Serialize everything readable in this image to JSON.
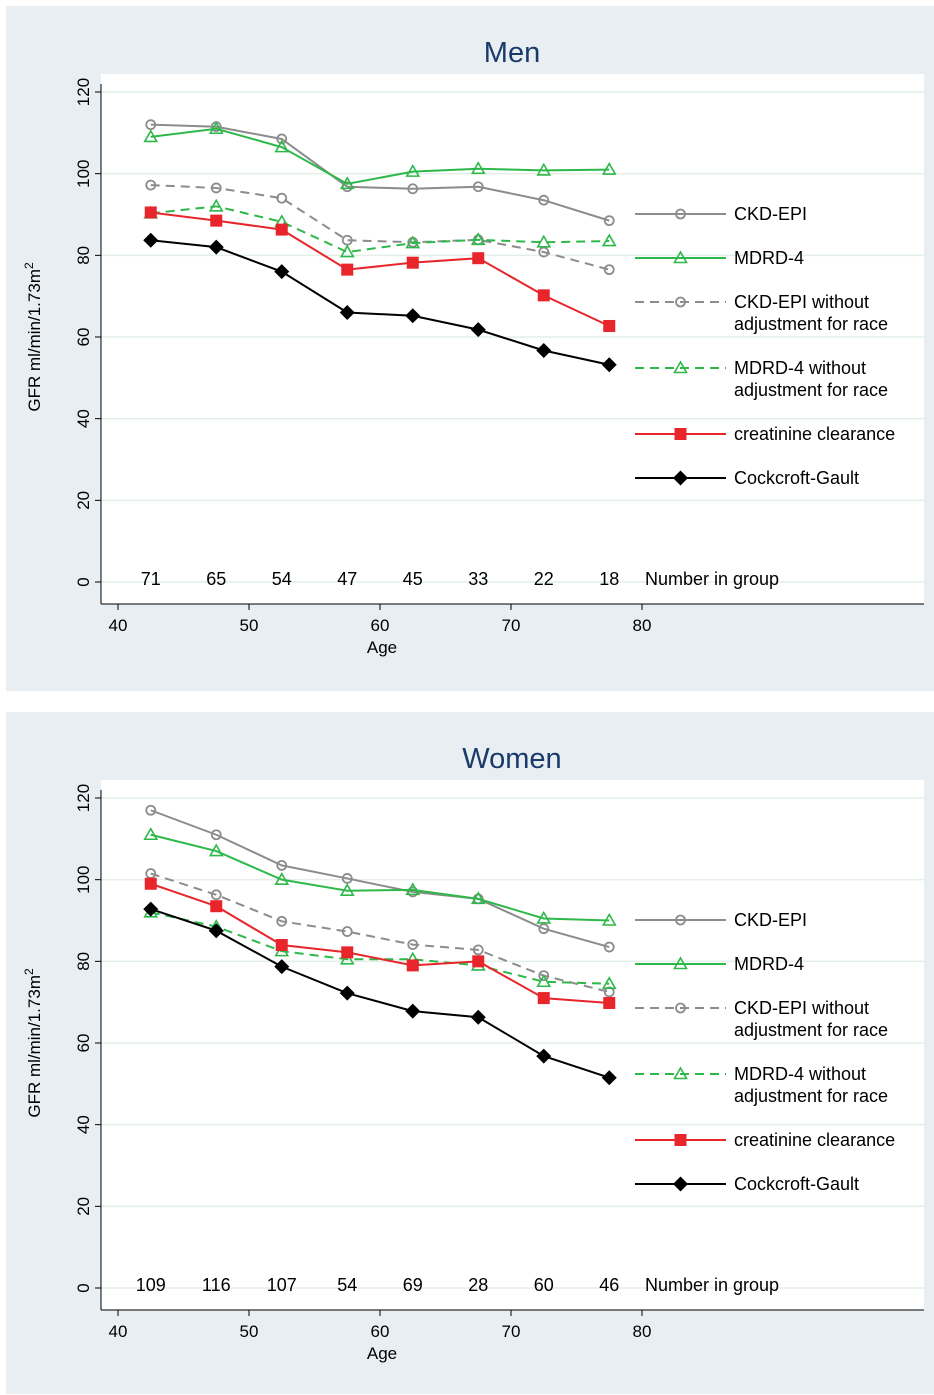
{
  "y_axis_label_prefix": "GFR ml/min/1.73m",
  "y_axis_label_sup": "2",
  "count_label": "Number in group",
  "colors": {
    "panel_bg": "#e8eef2",
    "grid": "#e4efe9",
    "title": "#1a3a6a"
  },
  "legend": [
    {
      "series": "CKD-EPI",
      "lines": [
        "CKD-EPI"
      ]
    },
    {
      "series": "MDRD-4",
      "lines": [
        "MDRD-4"
      ]
    },
    {
      "series": "CKD-EPI without adjustment for race",
      "lines": [
        "CKD-EPI without",
        "adjustment for race"
      ]
    },
    {
      "series": "MDRD-4 without adjustment for race",
      "lines": [
        "MDRD-4 without",
        "adjustment for race"
      ]
    },
    {
      "series": "creatinine clearance",
      "lines": [
        "creatinine clearance"
      ]
    },
    {
      "series": "Cockcroft-Gault",
      "lines": [
        "Cockcroft-Gault"
      ]
    }
  ],
  "chart_data": [
    {
      "type": "line",
      "title": "Men",
      "xlabel": "Age",
      "ylabel": "GFR ml/min/1.73m²",
      "xlim": [
        40,
        80
      ],
      "ylim": [
        0,
        120
      ],
      "x_ticks": [
        40,
        50,
        60,
        70,
        80
      ],
      "y_ticks": [
        0,
        20,
        40,
        60,
        80,
        100,
        120
      ],
      "grid": true,
      "legend_position": "right",
      "x": [
        42.5,
        47.5,
        52.5,
        57.5,
        62.5,
        67.5,
        72.5,
        77.5
      ],
      "number_in_group": [
        71,
        65,
        54,
        47,
        45,
        33,
        22,
        18
      ],
      "series": [
        {
          "name": "CKD-EPI",
          "color": "#8c8c8c",
          "dash": "solid",
          "marker": "circle-open",
          "values": [
            112,
            111.5,
            108.5,
            96.8,
            96.3,
            96.8,
            93.5,
            88.5
          ]
        },
        {
          "name": "MDRD-4",
          "color": "#2eb84a",
          "dash": "solid",
          "marker": "triangle-open",
          "values": [
            109,
            111,
            106.5,
            97.5,
            100.5,
            101.2,
            100.8,
            101
          ]
        },
        {
          "name": "CKD-EPI without adjustment for race",
          "color": "#8c8c8c",
          "dash": "dashed",
          "marker": "circle-open",
          "values": [
            97.2,
            96.5,
            94,
            83.7,
            83.2,
            83.8,
            80.8,
            76.5
          ]
        },
        {
          "name": "MDRD-4 without adjustment for race",
          "color": "#2eb84a",
          "dash": "dashed",
          "marker": "triangle-open",
          "values": [
            90.3,
            92,
            88.2,
            80.8,
            83,
            83.8,
            83.2,
            83.5
          ]
        },
        {
          "name": "creatinine clearance",
          "color": "#e8252b",
          "dash": "solid",
          "marker": "square-filled",
          "values": [
            90.5,
            88.5,
            86.3,
            76.5,
            78.2,
            79.3,
            70.2,
            62.7
          ]
        },
        {
          "name": "Cockcroft-Gault",
          "color": "#000000",
          "dash": "solid",
          "marker": "diamond-filled",
          "values": [
            83.7,
            82,
            76,
            66,
            65.2,
            61.8,
            56.7,
            53.2
          ]
        }
      ]
    },
    {
      "type": "line",
      "title": "Women",
      "xlabel": "Age",
      "ylabel": "GFR ml/min/1.73m²",
      "xlim": [
        40,
        80
      ],
      "ylim": [
        0,
        120
      ],
      "x_ticks": [
        40,
        50,
        60,
        70,
        80
      ],
      "y_ticks": [
        0,
        20,
        40,
        60,
        80,
        100,
        120
      ],
      "grid": true,
      "legend_position": "right",
      "x": [
        42.5,
        47.5,
        52.5,
        57.5,
        62.5,
        67.5,
        72.5,
        77.5
      ],
      "number_in_group": [
        109,
        116,
        107,
        54,
        69,
        28,
        60,
        46
      ],
      "series": [
        {
          "name": "CKD-EPI",
          "color": "#8c8c8c",
          "dash": "solid",
          "marker": "circle-open",
          "values": [
            117,
            111,
            103.5,
            100.3,
            97,
            95.3,
            88,
            83.5
          ]
        },
        {
          "name": "MDRD-4",
          "color": "#2eb84a",
          "dash": "solid",
          "marker": "triangle-open",
          "values": [
            111,
            107,
            100,
            97.3,
            97.5,
            95.3,
            90.5,
            90
          ]
        },
        {
          "name": "CKD-EPI without adjustment for race",
          "color": "#8c8c8c",
          "dash": "dashed",
          "marker": "circle-open",
          "values": [
            101.5,
            96.3,
            89.8,
            87.3,
            84.1,
            82.8,
            76.5,
            72.5
          ]
        },
        {
          "name": "MDRD-4 without adjustment for race",
          "color": "#2eb84a",
          "dash": "dashed",
          "marker": "triangle-open",
          "values": [
            92,
            88.5,
            82.5,
            80.5,
            80.5,
            79,
            75,
            74.5
          ]
        },
        {
          "name": "creatinine clearance",
          "color": "#e8252b",
          "dash": "solid",
          "marker": "square-filled",
          "values": [
            99,
            93.5,
            84,
            82.2,
            79,
            80,
            71,
            69.8
          ]
        },
        {
          "name": "Cockcroft-Gault",
          "color": "#000000",
          "dash": "solid",
          "marker": "diamond-filled",
          "values": [
            92.8,
            87.5,
            78.7,
            72.2,
            67.8,
            66.3,
            56.8,
            51.5
          ]
        }
      ]
    }
  ]
}
